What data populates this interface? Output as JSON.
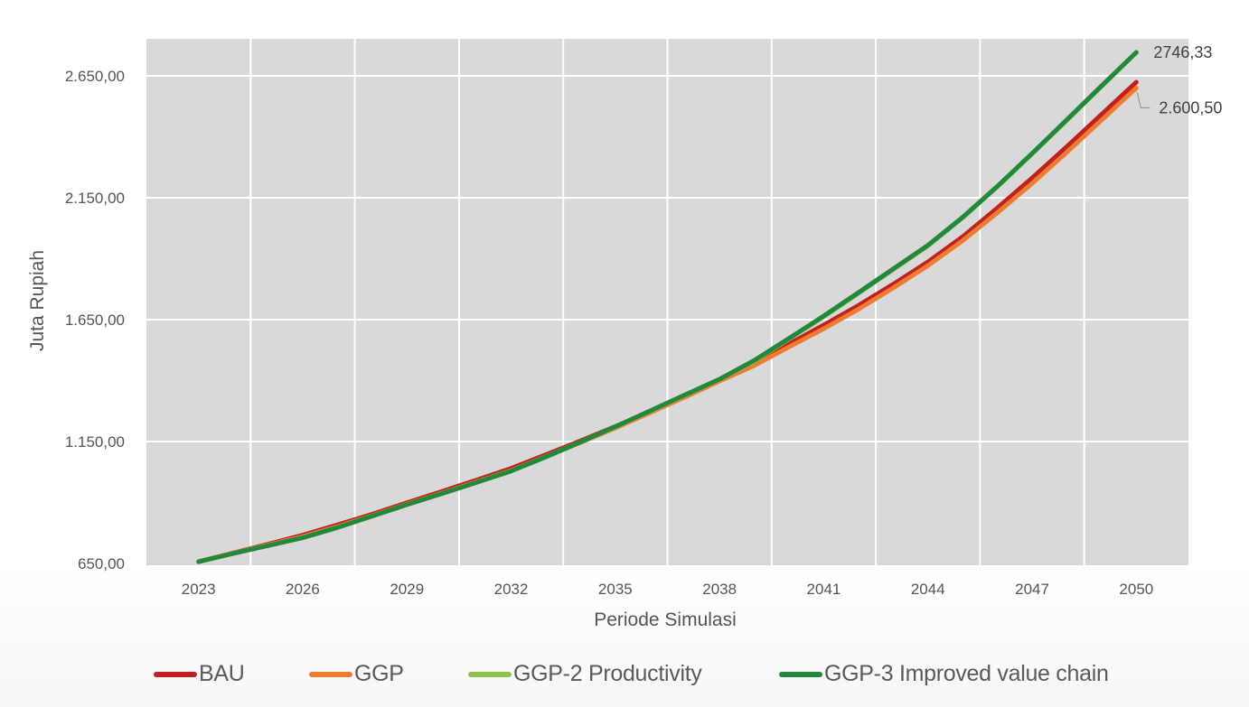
{
  "chart_data": {
    "type": "line",
    "title": "",
    "xlabel": "Periode Simulasi",
    "ylabel": "Juta Rupiah",
    "x": [
      2023,
      2024,
      2025,
      2026,
      2027,
      2028,
      2029,
      2030,
      2031,
      2032,
      2033,
      2034,
      2035,
      2036,
      2037,
      2038,
      2039,
      2040,
      2041,
      2042,
      2043,
      2044,
      2045,
      2046,
      2047,
      2048,
      2049,
      2050
    ],
    "x_ticks": [
      "2023",
      "2026",
      "2029",
      "2032",
      "2035",
      "2038",
      "2041",
      "2044",
      "2047",
      "2050"
    ],
    "x_range": [
      2021.5,
      2051.5
    ],
    "y_ticks": [
      "650,00",
      "1.150,00",
      "1.650,00",
      "2.150,00",
      "2.650,00"
    ],
    "y_tick_values": [
      650,
      1150,
      1650,
      2150,
      2650
    ],
    "ylim": [
      650,
      2800
    ],
    "grid": true,
    "legend_position": "bottom",
    "series": [
      {
        "name": "BAU",
        "color": "#c0201f",
        "values": [
          657,
          693,
          729,
          766,
          808,
          852,
          899,
          945,
          992,
          1040,
          1096,
          1153,
          1212,
          1272,
          1335,
          1400,
          1470,
          1550,
          1628,
          1708,
          1795,
          1887,
          1990,
          2108,
          2231,
          2360,
          2492,
          2624
        ]
      },
      {
        "name": "GGP",
        "color": "#ee7b30",
        "values": [
          657,
          692,
          726,
          760,
          801,
          846,
          893,
          938,
          984,
          1031,
          1088,
          1146,
          1206,
          1268,
          1332,
          1398,
          1462,
          1538,
          1613,
          1693,
          1780,
          1872,
          1974,
          2089,
          2209,
          2337,
          2469,
          2600.5
        ]
      },
      {
        "name": "GGP-2 Productivity",
        "color": "#8bc34a",
        "values": [
          657,
          691,
          724,
          756,
          798,
          845,
          892,
          937,
          983,
          1030,
          1088,
          1148,
          1210,
          1275,
          1340,
          1405,
          1480,
          1570,
          1662,
          1758,
          1855,
          1953,
          2068,
          2195,
          2330,
          2468,
          2607,
          2746.33
        ]
      },
      {
        "name": "GGP-3 Improved value chain",
        "color": "#23883a",
        "values": [
          657,
          691,
          723,
          755,
          797,
          844,
          891,
          936,
          982,
          1029,
          1087,
          1148,
          1211,
          1276,
          1341,
          1406,
          1483,
          1573,
          1665,
          1761,
          1858,
          1955,
          2070,
          2197,
          2332,
          2470,
          2609,
          2746.33
        ]
      }
    ],
    "annotations": [
      {
        "series": "GGP-3 Improved value chain",
        "x": 2050,
        "text": "2746,33"
      },
      {
        "series": "GGP",
        "x": 2050,
        "text": "2.600,50"
      }
    ]
  },
  "legend": {
    "items": [
      {
        "label": "BAU",
        "color": "#c0201f"
      },
      {
        "label": "GGP",
        "color": "#ee7b30"
      },
      {
        "label": "GGP-2 Productivity",
        "color": "#8bc34a"
      },
      {
        "label": "GGP-3 Improved value chain",
        "color": "#23883a"
      }
    ]
  }
}
